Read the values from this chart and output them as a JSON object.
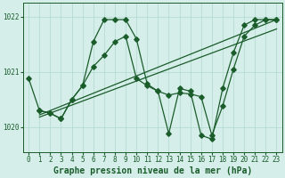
{
  "xlabel": "Graphe pression niveau de la mer (hPa)",
  "ylim": [
    1019.55,
    1022.25
  ],
  "xlim": [
    -0.5,
    23.5
  ],
  "yticks": [
    1020,
    1021,
    1022
  ],
  "xticks": [
    0,
    1,
    2,
    3,
    4,
    5,
    6,
    7,
    8,
    9,
    10,
    11,
    12,
    13,
    14,
    15,
    16,
    17,
    18,
    19,
    20,
    21,
    22,
    23
  ],
  "bg_color": "#d5eeea",
  "grid_color": "#b0d8d0",
  "line_color": "#1a5c2a",
  "series1": {
    "x": [
      0,
      1,
      2,
      3,
      4,
      5,
      6,
      7,
      8,
      9,
      10,
      11,
      12,
      13,
      14,
      15,
      16,
      17,
      18,
      19,
      20,
      21,
      22,
      23
    ],
    "y": [
      1020.88,
      1020.3,
      1020.25,
      1020.15,
      1020.5,
      1020.75,
      1021.55,
      1021.95,
      1021.95,
      1021.95,
      1021.6,
      1020.78,
      1020.65,
      1019.88,
      1020.7,
      1020.65,
      1019.85,
      1019.78,
      1020.7,
      1021.35,
      1021.85,
      1021.95,
      1021.95,
      1021.95
    ]
  },
  "series2": {
    "x": [
      1,
      2,
      3,
      4,
      5,
      6,
      7,
      8,
      9,
      10,
      11,
      12,
      13,
      14,
      15,
      16,
      17,
      18,
      19,
      20,
      21,
      22,
      23
    ],
    "y": [
      1020.3,
      1020.25,
      1020.15,
      1020.5,
      1020.75,
      1021.1,
      1021.3,
      1021.55,
      1021.65,
      1020.88,
      1020.75,
      1020.65,
      1020.58,
      1020.62,
      1020.6,
      1020.55,
      1019.85,
      1020.38,
      1021.05,
      1021.65,
      1021.85,
      1021.95,
      1021.95
    ]
  },
  "trend1_x": [
    1,
    23
  ],
  "trend1_y": [
    1020.22,
    1021.95
  ],
  "trend2_x": [
    1,
    23
  ],
  "trend2_y": [
    1020.18,
    1021.78
  ],
  "font_color": "#1a5c2a",
  "tick_fontsize": 5.5,
  "label_fontsize": 7.0,
  "marker_size": 2.8,
  "line_width": 0.9
}
